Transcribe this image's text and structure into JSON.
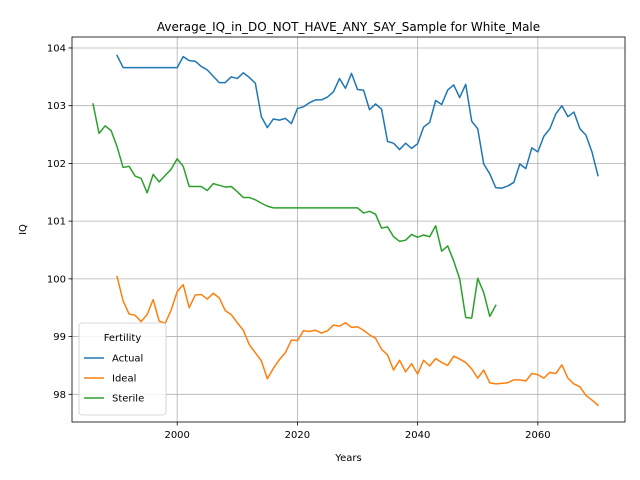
{
  "chart_data": {
    "type": "line",
    "title": "Average_IQ_in_DO_NOT_HAVE_ANY_SAY_Sample for White_Male",
    "xlabel": "Years",
    "ylabel": "IQ",
    "xlim": [
      1982.5,
      2074.5
    ],
    "ylim": [
      97.52,
      104.19
    ],
    "xticks": [
      2000,
      2020,
      2040,
      2060
    ],
    "yticks": [
      98,
      99,
      100,
      101,
      102,
      103,
      104
    ],
    "grid": true,
    "legend": {
      "title": "Fertility",
      "placement": "lower-left"
    },
    "series": [
      {
        "name": "Actual",
        "color": "#1f77b4",
        "x": [
          1990,
          1991,
          1992,
          1993,
          1994,
          1995,
          1996,
          1997,
          1998,
          1999,
          2000,
          2001,
          2002,
          2003,
          2004,
          2005,
          2006,
          2007,
          2008,
          2009,
          2010,
          2011,
          2012,
          2013,
          2014,
          2015,
          2016,
          2017,
          2018,
          2019,
          2020,
          2021,
          2022,
          2023,
          2024,
          2025,
          2026,
          2027,
          2028,
          2029,
          2030,
          2031,
          2032,
          2033,
          2034,
          2035,
          2036,
          2037,
          2038,
          2039,
          2040,
          2041,
          2042,
          2043,
          2044,
          2045,
          2046,
          2047,
          2048,
          2049,
          2050,
          2051,
          2052,
          2053,
          2054,
          2055,
          2056,
          2057,
          2058,
          2059,
          2060,
          2061,
          2062,
          2063,
          2064,
          2065,
          2066,
          2067,
          2068,
          2069,
          2070
        ],
        "values": [
          103.87,
          103.66,
          103.66,
          103.66,
          103.66,
          103.66,
          103.66,
          103.66,
          103.66,
          103.66,
          103.66,
          103.85,
          103.78,
          103.77,
          103.68,
          103.62,
          103.51,
          103.4,
          103.4,
          103.5,
          103.47,
          103.57,
          103.49,
          103.39,
          102.81,
          102.62,
          102.77,
          102.75,
          102.78,
          102.69,
          102.95,
          102.98,
          103.05,
          103.1,
          103.1,
          103.15,
          103.24,
          103.47,
          103.3,
          103.56,
          103.28,
          103.27,
          102.93,
          103.03,
          102.94,
          102.38,
          102.35,
          102.24,
          102.35,
          102.26,
          102.34,
          102.63,
          102.71,
          103.09,
          103.02,
          103.27,
          103.36,
          103.14,
          103.37,
          102.73,
          102.6,
          101.99,
          101.82,
          101.58,
          101.57,
          101.61,
          101.67,
          101.99,
          101.91,
          102.27,
          102.2,
          102.47,
          102.6,
          102.86,
          103.0,
          102.81,
          102.89,
          102.6,
          102.49,
          102.2,
          101.79
        ]
      },
      {
        "name": "Ideal",
        "color": "#ff7f0e",
        "x": [
          1990,
          1991,
          1992,
          1993,
          1994,
          1995,
          1996,
          1997,
          1998,
          1999,
          2000,
          2001,
          2002,
          2003,
          2004,
          2005,
          2006,
          2007,
          2008,
          2009,
          2010,
          2011,
          2012,
          2013,
          2014,
          2015,
          2016,
          2017,
          2018,
          2019,
          2020,
          2021,
          2022,
          2023,
          2024,
          2025,
          2026,
          2027,
          2028,
          2029,
          2030,
          2031,
          2032,
          2033,
          2034,
          2035,
          2036,
          2037,
          2038,
          2039,
          2040,
          2041,
          2042,
          2043,
          2044,
          2045,
          2046,
          2047,
          2048,
          2049,
          2050,
          2051,
          2052,
          2053,
          2054,
          2055,
          2056,
          2057,
          2058,
          2059,
          2060,
          2061,
          2062,
          2063,
          2064,
          2065,
          2066,
          2067,
          2068,
          2069,
          2070
        ],
        "values": [
          100.04,
          99.62,
          99.39,
          99.37,
          99.26,
          99.38,
          99.64,
          99.27,
          99.23,
          99.46,
          99.78,
          99.9,
          99.5,
          99.72,
          99.73,
          99.65,
          99.75,
          99.67,
          99.45,
          99.38,
          99.24,
          99.11,
          98.86,
          98.72,
          98.58,
          98.27,
          98.45,
          98.6,
          98.72,
          98.94,
          98.93,
          99.1,
          99.09,
          99.11,
          99.06,
          99.1,
          99.2,
          99.18,
          99.24,
          99.16,
          99.17,
          99.11,
          99.03,
          98.97,
          98.78,
          98.68,
          98.42,
          98.59,
          98.39,
          98.53,
          98.35,
          98.59,
          98.49,
          98.62,
          98.55,
          98.5,
          98.66,
          98.61,
          98.55,
          98.44,
          98.28,
          98.42,
          98.2,
          98.18,
          98.19,
          98.2,
          98.25,
          98.25,
          98.23,
          98.36,
          98.34,
          98.28,
          98.38,
          98.36,
          98.51,
          98.28,
          98.18,
          98.13,
          97.98,
          97.9,
          97.81
        ]
      },
      {
        "name": "Sterile",
        "color": "#2ca02c",
        "x": [
          1986,
          1987,
          1988,
          1989,
          1990,
          1991,
          1992,
          1993,
          1994,
          1995,
          1996,
          1997,
          1998,
          1999,
          2000,
          2001,
          2002,
          2003,
          2004,
          2005,
          2006,
          2007,
          2008,
          2009,
          2010,
          2011,
          2012,
          2013,
          2014,
          2015,
          2016,
          2017,
          2018,
          2019,
          2020,
          2021,
          2022,
          2023,
          2024,
          2025,
          2026,
          2027,
          2028,
          2029,
          2030,
          2031,
          2032,
          2033,
          2034,
          2035,
          2036,
          2037,
          2038,
          2039,
          2040,
          2041,
          2042,
          2043,
          2044,
          2045,
          2046,
          2047,
          2048,
          2049,
          2050,
          2051,
          2052,
          2053,
          2054
        ],
        "values": [
          103.03,
          102.52,
          102.65,
          102.57,
          102.29,
          101.93,
          101.95,
          101.78,
          101.74,
          101.49,
          101.81,
          101.68,
          101.79,
          101.9,
          102.08,
          101.95,
          101.6,
          101.6,
          101.6,
          101.53,
          101.65,
          101.62,
          101.59,
          101.6,
          101.51,
          101.41,
          101.41,
          101.37,
          101.31,
          101.26,
          101.23,
          101.23,
          101.23,
          101.23,
          101.23,
          101.23,
          101.23,
          101.23,
          101.23,
          101.23,
          101.23,
          101.23,
          101.23,
          101.23,
          101.23,
          101.14,
          101.17,
          101.12,
          100.88,
          100.9,
          100.73,
          100.65,
          100.67,
          100.77,
          100.72,
          100.76,
          100.73,
          100.92,
          100.48,
          100.57,
          100.31,
          100.0,
          99.33,
          99.32,
          100.01,
          99.76,
          99.35,
          99.54,
          null
        ]
      }
    ]
  }
}
